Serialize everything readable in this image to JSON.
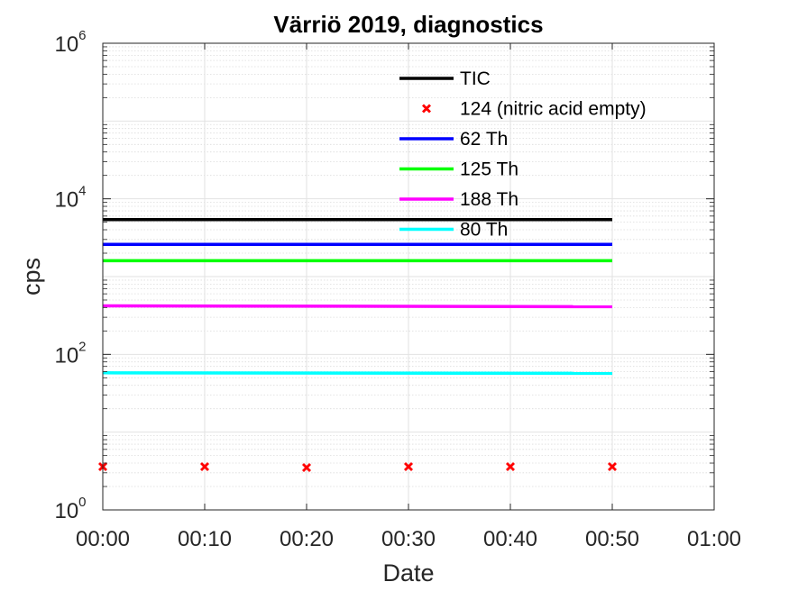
{
  "chart_data": {
    "type": "line",
    "title": "Värriö 2019, diagnostics",
    "xlabel": "Date",
    "ylabel": "cps",
    "y_scale": "log",
    "ylim": [
      1,
      1000000
    ],
    "xlim": [
      "00:00",
      "01:00"
    ],
    "x_ticks": [
      "00:00",
      "00:10",
      "00:20",
      "00:30",
      "00:40",
      "00:50",
      "01:00"
    ],
    "y_ticks": [
      {
        "base": "10",
        "exp": "0",
        "value": 1
      },
      {
        "base": "10",
        "exp": "2",
        "value": 100
      },
      {
        "base": "10",
        "exp": "4",
        "value": 10000
      },
      {
        "base": "10",
        "exp": "6",
        "value": 1000000
      }
    ],
    "grid": true,
    "legend_position": "top-right",
    "series": [
      {
        "name": "TIC",
        "style": "line",
        "color": "#000000",
        "x": [
          "00:00",
          "00:50"
        ],
        "values": [
          5400,
          5400
        ]
      },
      {
        "name": "124 (nitric acid empty)",
        "style": "marker-x",
        "color": "#ff0000",
        "x": [
          "00:00",
          "00:10",
          "00:20",
          "00:30",
          "00:40",
          "00:50"
        ],
        "values": [
          3.6,
          3.6,
          3.5,
          3.6,
          3.6,
          3.6
        ]
      },
      {
        "name": "62 Th",
        "style": "line",
        "color": "#0000ff",
        "x": [
          "00:00",
          "00:50"
        ],
        "values": [
          2600,
          2600
        ]
      },
      {
        "name": "125 Th",
        "style": "line",
        "color": "#00ff00",
        "x": [
          "00:00",
          "00:50"
        ],
        "values": [
          1600,
          1600
        ]
      },
      {
        "name": "188 Th",
        "style": "line",
        "color": "#ff00ff",
        "x": [
          "00:00",
          "00:50"
        ],
        "values": [
          420,
          410
        ]
      },
      {
        "name": "80 Th",
        "style": "line",
        "color": "#00ffff",
        "x": [
          "00:00",
          "00:50"
        ],
        "values": [
          58,
          57
        ]
      }
    ]
  }
}
